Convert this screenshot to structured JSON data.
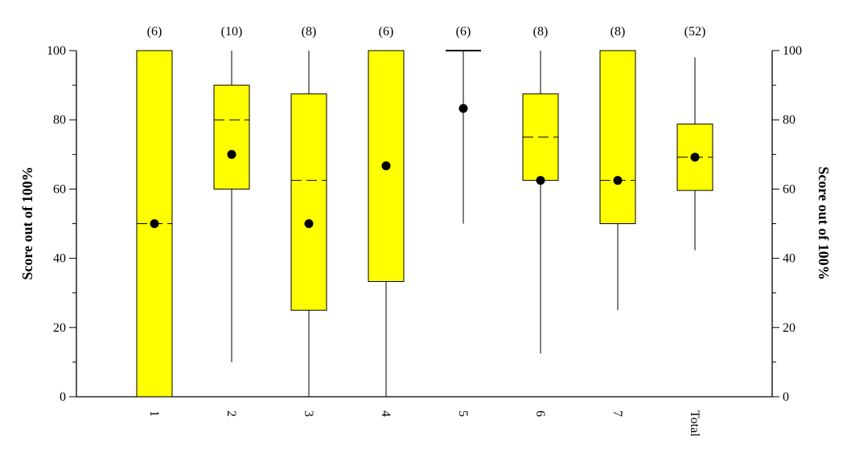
{
  "chart_data": {
    "type": "box",
    "categories": [
      "1",
      "2",
      "3",
      "4",
      "5",
      "6",
      "7",
      "Total"
    ],
    "counts": [
      "(6)",
      "(10)",
      "(8)",
      "(6)",
      "(6)",
      "(8)",
      "(8)",
      "(52)"
    ],
    "boxes": [
      {
        "category": "1",
        "whisker_low": 0,
        "q1": 0,
        "median": 50,
        "q3": 100,
        "whisker_high": 100,
        "mean": 50
      },
      {
        "category": "2",
        "whisker_low": 10,
        "q1": 60,
        "median": 80,
        "q3": 90,
        "whisker_high": 100,
        "mean": 70
      },
      {
        "category": "3",
        "whisker_low": 0,
        "q1": 25,
        "median": 62.5,
        "q3": 87.5,
        "whisker_high": 100,
        "mean": 50
      },
      {
        "category": "4",
        "whisker_low": 0,
        "q1": 33.3,
        "median": 100,
        "q3": 100,
        "whisker_high": 100,
        "mean": 66.7
      },
      {
        "category": "5",
        "whisker_low": 50,
        "q1": 100,
        "median": 100,
        "q3": 100,
        "whisker_high": 100,
        "mean": 83.3
      },
      {
        "category": "6",
        "whisker_low": 12.5,
        "q1": 62.5,
        "median": 75,
        "q3": 87.5,
        "whisker_high": 100,
        "mean": 62.5
      },
      {
        "category": "7",
        "whisker_low": 25,
        "q1": 50,
        "median": 62.5,
        "q3": 100,
        "whisker_high": 100,
        "mean": 62.5
      },
      {
        "category": "Total",
        "whisker_low": 42.3,
        "q1": 59.6,
        "median": 69.2,
        "q3": 78.8,
        "whisker_high": 98.1,
        "mean": 69.2
      }
    ],
    "ylabel_left": "Score out of 100%",
    "ylabel_right": "Score out of 100%",
    "ylim": [
      0,
      100
    ],
    "yticks": [
      "0",
      "20",
      "40",
      "60",
      "80",
      "100"
    ],
    "grid": false,
    "box_color": "#ffff00",
    "mean_marker_color": "#000000"
  }
}
